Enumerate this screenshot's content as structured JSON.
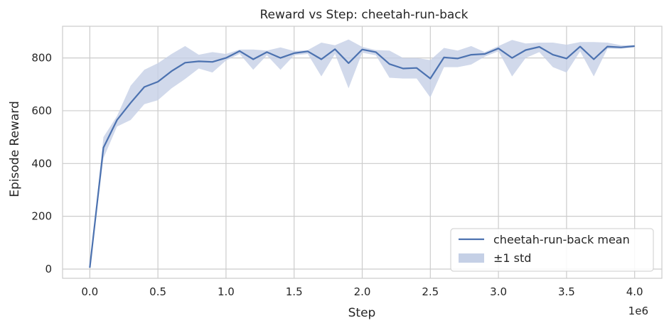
{
  "chart_data": {
    "type": "line",
    "title": "Reward vs Step: cheetah-run-back",
    "xlabel": "Step",
    "ylabel": "Episode Reward",
    "x_offset_label": "1e6",
    "xlim": [
      -200000,
      4200000
    ],
    "ylim": [
      -35,
      920
    ],
    "x_ticks": [
      0,
      500000,
      1000000,
      1500000,
      2000000,
      2500000,
      3000000,
      3500000,
      4000000
    ],
    "x_tick_labels": [
      "0.0",
      "0.5",
      "1.0",
      "1.5",
      "2.0",
      "2.5",
      "3.0",
      "3.5",
      "4.0"
    ],
    "y_ticks": [
      0,
      200,
      400,
      600,
      800
    ],
    "y_tick_labels": [
      "0",
      "200",
      "400",
      "600",
      "800"
    ],
    "grid": true,
    "legend": {
      "position": "bottom-right",
      "entries": [
        "cheetah-run-back mean",
        "±1 std"
      ]
    },
    "colors": {
      "line": "#4c72b0",
      "band": "#c5d0e6"
    },
    "series": [
      {
        "name": "cheetah-run-back mean",
        "x": [
          0,
          100000,
          200000,
          300000,
          400000,
          500000,
          600000,
          700000,
          800000,
          900000,
          1000000,
          1100000,
          1200000,
          1300000,
          1400000,
          1500000,
          1600000,
          1700000,
          1800000,
          1900000,
          2000000,
          2100000,
          2200000,
          2300000,
          2400000,
          2500000,
          2600000,
          2700000,
          2800000,
          2900000,
          3000000,
          3100000,
          3200000,
          3300000,
          3400000,
          3500000,
          3600000,
          3700000,
          3800000,
          3900000,
          4000000
        ],
        "mean": [
          5,
          460,
          565,
          630,
          690,
          710,
          750,
          782,
          787,
          785,
          800,
          826,
          795,
          822,
          800,
          818,
          825,
          795,
          833,
          780,
          832,
          822,
          777,
          760,
          762,
          722,
          802,
          798,
          812,
          815,
          836,
          800,
          830,
          842,
          812,
          798,
          843,
          795,
          843,
          840,
          845
        ],
        "lower": [
          5,
          420,
          540,
          565,
          625,
          640,
          685,
          720,
          760,
          745,
          790,
          815,
          755,
          810,
          755,
          810,
          815,
          730,
          815,
          685,
          820,
          810,
          725,
          722,
          722,
          650,
          765,
          765,
          775,
          805,
          825,
          730,
          800,
          822,
          765,
          745,
          825,
          730,
          835,
          835,
          840
        ],
        "upper": [
          5,
          500,
          580,
          695,
          755,
          780,
          815,
          845,
          812,
          822,
          815,
          832,
          832,
          828,
          840,
          826,
          830,
          858,
          848,
          870,
          842,
          830,
          828,
          800,
          800,
          792,
          838,
          828,
          845,
          822,
          845,
          868,
          855,
          858,
          858,
          850,
          860,
          860,
          858,
          848,
          848
        ]
      }
    ]
  }
}
